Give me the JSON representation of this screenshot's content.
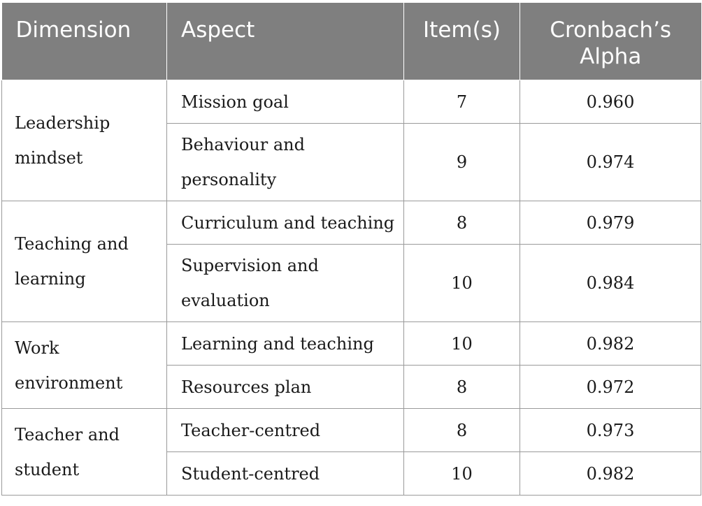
{
  "table": {
    "headers": {
      "dimension": "Dimension",
      "aspect": "Aspect",
      "items": "Item(s)",
      "alpha_line1": "Cronbach’s",
      "alpha_line2": "Alpha"
    },
    "groups": [
      {
        "dimension_line1": "Leadership",
        "dimension_line2": "mindset",
        "rows": [
          {
            "aspect": "Mission goal",
            "items": "7",
            "alpha": "0.960"
          },
          {
            "aspect_line1": "Behaviour and",
            "aspect_line2": "personality",
            "items": "9",
            "alpha": "0.974"
          }
        ]
      },
      {
        "dimension_line1": "Teaching and",
        "dimension_line2": "learning",
        "rows": [
          {
            "aspect": "Curriculum and teaching",
            "items": "8",
            "alpha": "0.979"
          },
          {
            "aspect_line1": "Supervision and",
            "aspect_line2": "evaluation",
            "items": "10",
            "alpha": "0.984"
          }
        ]
      },
      {
        "dimension_line1": "Work",
        "dimension_line2": "environment",
        "rows": [
          {
            "aspect": "Learning and teaching",
            "items": "10",
            "alpha": "0.982"
          },
          {
            "aspect": "Resources plan",
            "items": "8",
            "alpha": "0.972"
          }
        ]
      },
      {
        "dimension_line1": "Teacher and",
        "dimension_line2": "student",
        "rows": [
          {
            "aspect": "Teacher-centred",
            "items": "8",
            "alpha": "0.973"
          },
          {
            "aspect": "Student-centred",
            "items": "10",
            "alpha": "0.982"
          }
        ]
      }
    ]
  },
  "colors": {
    "header_bg": "#7f7f7f",
    "header_text": "#ffffff",
    "grid_line": "#9a9a9a",
    "body_text": "#1a1a1a"
  }
}
